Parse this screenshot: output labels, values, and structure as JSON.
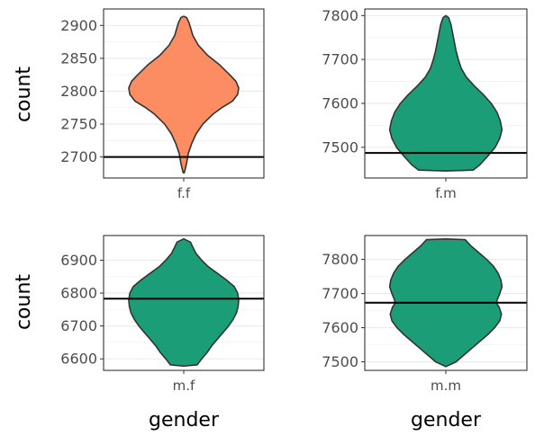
{
  "colors": {
    "female_pair": "#FC8D62",
    "mixed_pair": "#1B9E77",
    "outline": "#333333",
    "reference_line": "#000000"
  },
  "chart_data": [
    {
      "type": "violin",
      "category": "f.f",
      "ylabel": "count",
      "xlabel": "",
      "ylim": [
        2668,
        2925
      ],
      "yticks": [
        2700,
        2750,
        2800,
        2850,
        2900
      ],
      "reference_line": 2700,
      "fill": "#FC8D62",
      "grid": true,
      "density": [
        [
          2676,
          0.01
        ],
        [
          2690,
          0.05
        ],
        [
          2705,
          0.08
        ],
        [
          2720,
          0.14
        ],
        [
          2735,
          0.22
        ],
        [
          2750,
          0.34
        ],
        [
          2765,
          0.52
        ],
        [
          2775,
          0.68
        ],
        [
          2785,
          0.87
        ],
        [
          2795,
          0.96
        ],
        [
          2805,
          0.98
        ],
        [
          2815,
          0.93
        ],
        [
          2825,
          0.82
        ],
        [
          2840,
          0.64
        ],
        [
          2855,
          0.42
        ],
        [
          2870,
          0.26
        ],
        [
          2885,
          0.16
        ],
        [
          2897,
          0.12
        ],
        [
          2905,
          0.09
        ],
        [
          2912,
          0.05
        ],
        [
          2914,
          0.0
        ]
      ]
    },
    {
      "type": "violin",
      "category": "f.m",
      "ylabel": "",
      "xlabel": "",
      "ylim": [
        7430,
        7815
      ],
      "yticks": [
        7500,
        7600,
        7700,
        7800
      ],
      "reference_line": 7487,
      "fill": "#1B9E77",
      "grid": true,
      "density": [
        [
          7446,
          0.0
        ],
        [
          7448,
          0.48
        ],
        [
          7460,
          0.6
        ],
        [
          7480,
          0.74
        ],
        [
          7500,
          0.87
        ],
        [
          7520,
          0.95
        ],
        [
          7540,
          0.99
        ],
        [
          7560,
          0.96
        ],
        [
          7580,
          0.9
        ],
        [
          7600,
          0.8
        ],
        [
          7620,
          0.66
        ],
        [
          7640,
          0.5
        ],
        [
          7660,
          0.36
        ],
        [
          7680,
          0.27
        ],
        [
          7700,
          0.22
        ],
        [
          7720,
          0.18
        ],
        [
          7740,
          0.15
        ],
        [
          7760,
          0.12
        ],
        [
          7780,
          0.09
        ],
        [
          7795,
          0.05
        ],
        [
          7800,
          0.0
        ]
      ]
    },
    {
      "type": "violin",
      "category": "m.f",
      "ylabel": "count",
      "xlabel": "gender",
      "ylim": [
        6565,
        6975
      ],
      "yticks": [
        6600,
        6700,
        6800,
        6900
      ],
      "reference_line": 6783,
      "fill": "#1B9E77",
      "grid": true,
      "density": [
        [
          6578,
          0.0
        ],
        [
          6582,
          0.24
        ],
        [
          6600,
          0.32
        ],
        [
          6620,
          0.42
        ],
        [
          6640,
          0.5
        ],
        [
          6660,
          0.6
        ],
        [
          6680,
          0.7
        ],
        [
          6700,
          0.8
        ],
        [
          6720,
          0.88
        ],
        [
          6740,
          0.94
        ],
        [
          6760,
          0.97
        ],
        [
          6780,
          0.98
        ],
        [
          6800,
          0.96
        ],
        [
          6820,
          0.9
        ],
        [
          6840,
          0.76
        ],
        [
          6860,
          0.6
        ],
        [
          6880,
          0.44
        ],
        [
          6900,
          0.32
        ],
        [
          6920,
          0.22
        ],
        [
          6940,
          0.16
        ],
        [
          6955,
          0.12
        ],
        [
          6965,
          0.0
        ]
      ]
    },
    {
      "type": "violin",
      "category": "m.m",
      "ylabel": "",
      "xlabel": "gender",
      "ylim": [
        7475,
        7870
      ],
      "yticks": [
        7500,
        7600,
        7700,
        7800
      ],
      "reference_line": 7673,
      "fill": "#1B9E77",
      "grid": true,
      "density": [
        [
          7486,
          0.0
        ],
        [
          7500,
          0.18
        ],
        [
          7520,
          0.32
        ],
        [
          7540,
          0.46
        ],
        [
          7560,
          0.6
        ],
        [
          7580,
          0.74
        ],
        [
          7600,
          0.86
        ],
        [
          7620,
          0.95
        ],
        [
          7640,
          0.98
        ],
        [
          7660,
          0.94
        ],
        [
          7670,
          0.9
        ],
        [
          7680,
          0.9
        ],
        [
          7700,
          0.95
        ],
        [
          7720,
          0.99
        ],
        [
          7740,
          0.97
        ],
        [
          7760,
          0.92
        ],
        [
          7780,
          0.84
        ],
        [
          7800,
          0.72
        ],
        [
          7820,
          0.58
        ],
        [
          7840,
          0.44
        ],
        [
          7858,
          0.34
        ],
        [
          7860,
          0.0
        ]
      ]
    }
  ]
}
